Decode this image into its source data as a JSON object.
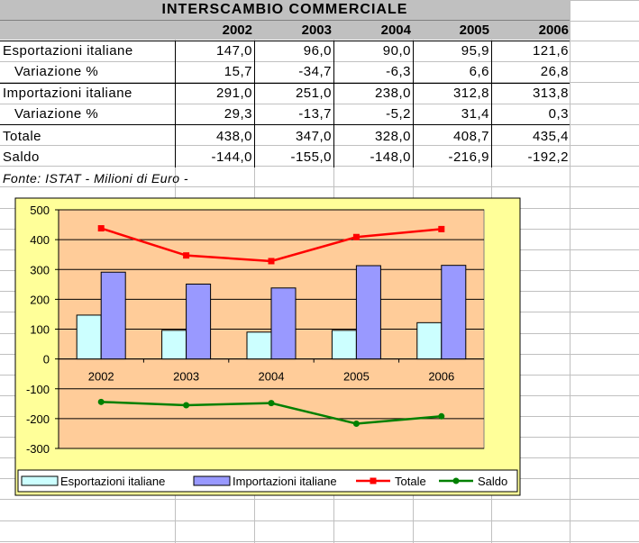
{
  "table": {
    "title": "INTERSCAMBIO COMMERCIALE",
    "years": [
      "2002",
      "2003",
      "2004",
      "2005",
      "2006"
    ],
    "rows": [
      {
        "label": "Esportazioni italiane",
        "values": [
          "147,0",
          "96,0",
          "90,0",
          "95,9",
          "121,6"
        ]
      },
      {
        "label": "  Variazione %",
        "values": [
          "15,7",
          "-34,7",
          "-6,3",
          "6,6",
          "26,8"
        ]
      },
      {
        "label": "Importazioni italiane",
        "values": [
          "291,0",
          "251,0",
          "238,0",
          "312,8",
          "313,8"
        ]
      },
      {
        "label": "  Variazione %",
        "values": [
          "29,3",
          "-13,7",
          "-5,2",
          "31,4",
          "0,3"
        ]
      },
      {
        "label": "Totale",
        "values": [
          "438,0",
          "347,0",
          "328,0",
          "408,7",
          "435,4"
        ]
      },
      {
        "label": "Saldo",
        "values": [
          "-144,0",
          "-155,0",
          "-148,0",
          "-216,9",
          "-192,2"
        ]
      }
    ],
    "source": "Fonte: ISTAT - Milioni di Euro -"
  },
  "chart_data": {
    "type": "bar",
    "categories": [
      "2002",
      "2003",
      "2004",
      "2005",
      "2006"
    ],
    "ylim": [
      -300,
      500
    ],
    "yticks": [
      500,
      400,
      300,
      200,
      100,
      0,
      -100,
      -200,
      -300
    ],
    "grid": true,
    "legend_position": "bottom",
    "series": [
      {
        "name": "Esportazioni italiane",
        "kind": "bar",
        "color": "#ccffff",
        "values": [
          147.0,
          96.0,
          90.0,
          95.9,
          121.6
        ]
      },
      {
        "name": "Importazioni italiane",
        "kind": "bar",
        "color": "#9999ff",
        "values": [
          291.0,
          251.0,
          238.0,
          312.8,
          313.8
        ]
      },
      {
        "name": "Totale",
        "kind": "line",
        "marker": "square",
        "color": "#ff0000",
        "values": [
          438.0,
          347.0,
          328.0,
          408.7,
          435.4
        ]
      },
      {
        "name": "Saldo",
        "kind": "line",
        "marker": "circle",
        "color": "#008000",
        "values": [
          -144.0,
          -155.0,
          -148.0,
          -216.9,
          -192.2
        ]
      }
    ],
    "colors": {
      "chart_area": "#ffff99",
      "plot_area": "#ffcc99"
    }
  }
}
